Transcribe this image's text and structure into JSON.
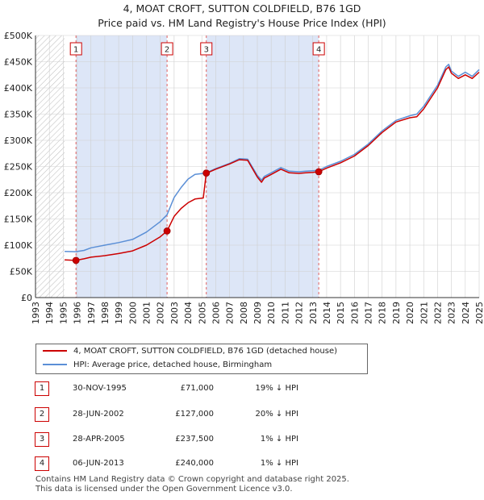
{
  "header": {
    "line1": "4, MOAT CROFT, SUTTON COLDFIELD, B76 1GD",
    "line2": "Price paid vs. HM Land Registry's House Price Index (HPI)"
  },
  "colors": {
    "price_line": "#cc0000",
    "hpi_line": "#5b8fd6",
    "shade": "#dde6f7",
    "grid": "#cfcfcf",
    "vline": "#e06060"
  },
  "chart_data": {
    "type": "line",
    "xlim": [
      1993,
      2025
    ],
    "ylim": [
      0,
      500000
    ],
    "x_ticks": [
      "1993",
      "1994",
      "1995",
      "1996",
      "1997",
      "1998",
      "1999",
      "2000",
      "2001",
      "2002",
      "2003",
      "2004",
      "2005",
      "2006",
      "2007",
      "2008",
      "2009",
      "2010",
      "2011",
      "2012",
      "2013",
      "2014",
      "2015",
      "2016",
      "2017",
      "2018",
      "2019",
      "2020",
      "2021",
      "2022",
      "2023",
      "2024",
      "2025"
    ],
    "y_ticks": [
      {
        "value": 0,
        "label": "£0"
      },
      {
        "value": 50000,
        "label": "£50K"
      },
      {
        "value": 100000,
        "label": "£100K"
      },
      {
        "value": 150000,
        "label": "£150K"
      },
      {
        "value": 200000,
        "label": "£200K"
      },
      {
        "value": 250000,
        "label": "£250K"
      },
      {
        "value": 300000,
        "label": "£300K"
      },
      {
        "value": 350000,
        "label": "£350K"
      },
      {
        "value": 400000,
        "label": "£400K"
      },
      {
        "value": 450000,
        "label": "£450K"
      },
      {
        "value": 500000,
        "label": "£500K"
      }
    ],
    "hatched_range": [
      1993,
      1995.1
    ],
    "series": [
      {
        "name": "4, MOAT CROFT, SUTTON COLDFIELD, B76 1GD (detached house)",
        "x": [
          1995.1,
          1995.9,
          1996.5,
          1997,
          1998,
          1999,
          2000,
          2001,
          2002,
          2002.49,
          2003,
          2003.5,
          2004,
          2004.5,
          2005.1,
          2005.32,
          2005.4,
          2006,
          2007,
          2007.7,
          2008.3,
          2009,
          2009.3,
          2009.5,
          2010,
          2010.7,
          2011.3,
          2012,
          2012.5,
          2013,
          2013.43,
          2014,
          2015,
          2016,
          2017,
          2018,
          2019,
          2020,
          2020.5,
          2021,
          2021.5,
          2022,
          2022.6,
          2022.8,
          2023,
          2023.5,
          2024,
          2024.5,
          2025
        ],
        "y": [
          72000,
          71000,
          74000,
          77000,
          80000,
          84000,
          89000,
          100000,
          116000,
          127000,
          155000,
          170000,
          181000,
          188000,
          190000,
          237500,
          238000,
          245000,
          255000,
          263000,
          262000,
          230000,
          220000,
          228000,
          235000,
          245000,
          238000,
          237000,
          238000,
          239000,
          240000,
          247000,
          257000,
          270000,
          290000,
          315000,
          335000,
          343000,
          345000,
          360000,
          380000,
          400000,
          435000,
          440000,
          428000,
          418000,
          425000,
          418000,
          430000
        ]
      },
      {
        "name": "HPI: Average price, detached house, Birmingham",
        "x": [
          1995.1,
          1995.9,
          1996.5,
          1997,
          1998,
          1999,
          2000,
          2001,
          2002,
          2002.49,
          2003,
          2003.5,
          2004,
          2004.5,
          2005.1,
          2005.32,
          2005.4,
          2006,
          2007,
          2007.7,
          2008.3,
          2009,
          2009.3,
          2009.5,
          2010,
          2010.7,
          2011.3,
          2012,
          2012.5,
          2013,
          2013.43,
          2014,
          2015,
          2016,
          2017,
          2018,
          2019,
          2020,
          2020.5,
          2021,
          2021.5,
          2022,
          2022.6,
          2022.8,
          2023,
          2023.5,
          2024,
          2024.5,
          2025
        ],
        "y": [
          88000,
          87500,
          90000,
          95000,
          100000,
          105000,
          111000,
          125000,
          145000,
          158000,
          191000,
          210000,
          226000,
          235000,
          237000,
          238500,
          239000,
          246000,
          256000,
          265000,
          264000,
          233000,
          224000,
          231000,
          238000,
          248000,
          241000,
          240000,
          241000,
          242000,
          243000,
          250000,
          260000,
          273000,
          293000,
          318000,
          338000,
          347000,
          350000,
          365000,
          385000,
          405000,
          440000,
          445000,
          432000,
          422000,
          430000,
          422000,
          435000
        ]
      }
    ],
    "sales": [
      {
        "label": "1",
        "x": 1995.92,
        "y": 71000
      },
      {
        "label": "2",
        "x": 2002.49,
        "y": 127000
      },
      {
        "label": "3",
        "x": 2005.32,
        "y": 237500
      },
      {
        "label": "4",
        "x": 2013.43,
        "y": 240000
      }
    ]
  },
  "legend": {
    "price_label": "4, MOAT CROFT, SUTTON COLDFIELD, B76 1GD (detached house)",
    "hpi_label": "HPI: Average price, detached house, Birmingham"
  },
  "table": {
    "rows": [
      {
        "num": "1",
        "date": "30-NOV-1995",
        "price": "£71,000",
        "hpi": "19% ↓ HPI"
      },
      {
        "num": "2",
        "date": "28-JUN-2002",
        "price": "£127,000",
        "hpi": "20% ↓ HPI"
      },
      {
        "num": "3",
        "date": "28-APR-2005",
        "price": "£237,500",
        "hpi": "1% ↓ HPI"
      },
      {
        "num": "4",
        "date": "06-JUN-2013",
        "price": "£240,000",
        "hpi": "1% ↓ HPI"
      }
    ]
  },
  "footer": {
    "line1": "Contains HM Land Registry data © Crown copyright and database right 2025.",
    "line2": "This data is licensed under the Open Government Licence v3.0."
  }
}
